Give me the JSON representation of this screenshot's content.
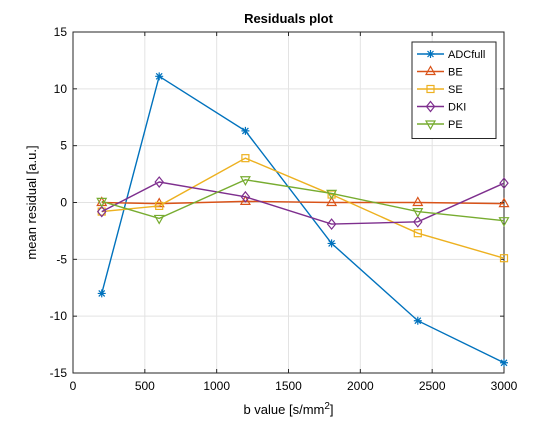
{
  "chart_data": {
    "type": "line",
    "title": "Residuals plot",
    "xlabel": "b value [s/mm",
    "xlabel_sup": "2",
    "xlabel_end": "]",
    "ylabel": "mean residual [a.u.]",
    "xlim": [
      0,
      3000
    ],
    "ylim": [
      -15,
      15
    ],
    "xticks": [
      0,
      500,
      1000,
      1500,
      2000,
      2500,
      3000
    ],
    "yticks": [
      -15,
      -10,
      -5,
      0,
      5,
      10,
      15
    ],
    "xtick_labels": [
      "0",
      "500",
      "1000",
      "1500",
      "2000",
      "2500",
      "3000"
    ],
    "ytick_labels": [
      "-15",
      "-10",
      "-5",
      "0",
      "5",
      "10",
      "15"
    ],
    "grid": true,
    "legend_position": "top-right",
    "x": [
      200,
      600,
      1200,
      1800,
      2400,
      3000
    ],
    "series": [
      {
        "name": "ADCfull",
        "color": "#0072BD",
        "marker": "asterisk",
        "values": [
          -8.0,
          11.1,
          6.3,
          -3.6,
          -10.4,
          -14.1
        ]
      },
      {
        "name": "BE",
        "color": "#D95319",
        "marker": "triangle-up",
        "values": [
          0.0,
          -0.1,
          0.1,
          0.0,
          0.0,
          -0.1
        ]
      },
      {
        "name": "SE",
        "color": "#EDB120",
        "marker": "square",
        "values": [
          -0.8,
          -0.3,
          3.9,
          0.7,
          -2.7,
          -4.9
        ]
      },
      {
        "name": "DKI",
        "color": "#7E2F8E",
        "marker": "diamond",
        "values": [
          -0.8,
          1.8,
          0.5,
          -1.9,
          -1.7,
          1.7
        ]
      },
      {
        "name": "PE",
        "color": "#77AC30",
        "marker": "triangle-down",
        "values": [
          0.1,
          -1.4,
          2.0,
          0.8,
          -0.8,
          -1.6
        ]
      }
    ]
  }
}
